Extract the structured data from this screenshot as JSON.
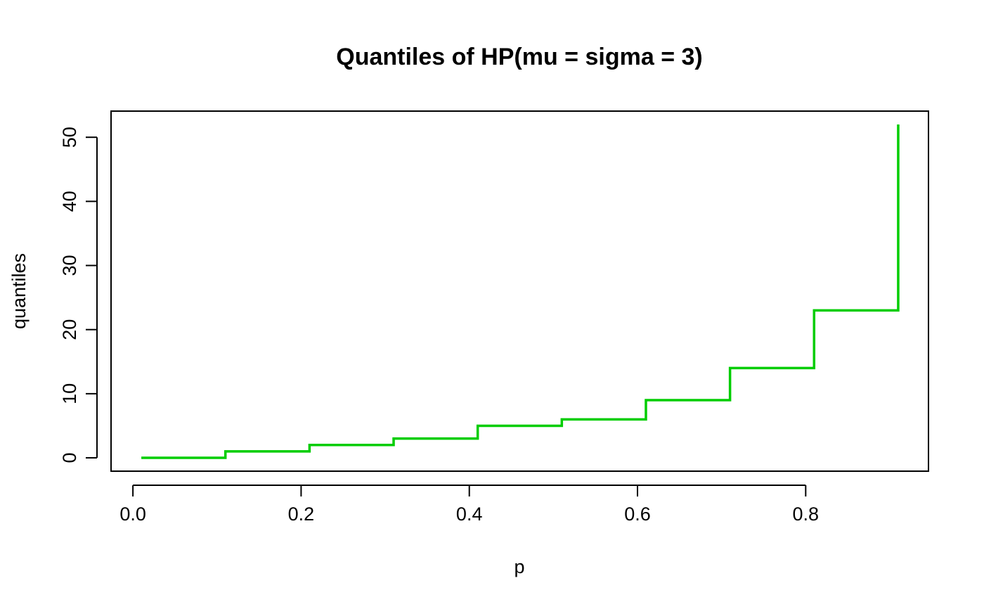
{
  "chart_data": {
    "type": "line",
    "step": true,
    "title": "Quantiles of HP(mu = sigma = 3)",
    "xlabel": "p",
    "ylabel": "quantiles",
    "x": [
      0.01,
      0.11,
      0.21,
      0.31,
      0.41,
      0.51,
      0.61,
      0.71,
      0.81,
      0.91
    ],
    "series": [
      {
        "values": [
          0,
          1,
          2,
          3,
          5,
          6,
          9,
          14,
          23,
          52
        ]
      }
    ],
    "xlim": [
      -0.026,
      0.946
    ],
    "ylim": [
      -2.08,
      54.08
    ],
    "xticks": [
      0.0,
      0.2,
      0.4,
      0.6,
      0.8
    ],
    "xtick_labels": [
      "0.0",
      "0.2",
      "0.4",
      "0.6",
      "0.8"
    ],
    "yticks": [
      0,
      10,
      20,
      30,
      40,
      50
    ],
    "ytick_labels": [
      "0",
      "10",
      "20",
      "30",
      "40",
      "50"
    ],
    "line_color": "#00CD00",
    "grid": false,
    "legend": "none"
  }
}
